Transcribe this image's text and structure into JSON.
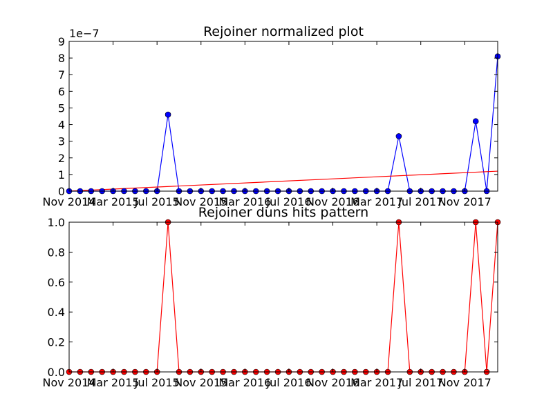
{
  "chart_data": [
    {
      "type": "line",
      "title": "Rejoiner normalized plot",
      "offset_label": "1e−7",
      "x": [
        "2014-11",
        "2014-12",
        "2015-01",
        "2015-02",
        "2015-03",
        "2015-04",
        "2015-05",
        "2015-06",
        "2015-07",
        "2015-08",
        "2015-09",
        "2015-10",
        "2015-11",
        "2015-12",
        "2016-01",
        "2016-02",
        "2016-03",
        "2016-04",
        "2016-05",
        "2016-06",
        "2016-07",
        "2016-08",
        "2016-09",
        "2016-10",
        "2016-11",
        "2016-12",
        "2017-01",
        "2017-02",
        "2017-03",
        "2017-04",
        "2017-05",
        "2017-06",
        "2017-07",
        "2017-08",
        "2017-09",
        "2017-10",
        "2017-11",
        "2017-12",
        "2018-01",
        "2018-02"
      ],
      "series": [
        {
          "color": "#0000ff",
          "values": [
            0,
            0,
            0,
            0,
            0,
            0,
            0,
            0,
            0,
            4.6,
            0,
            0,
            0,
            0,
            0,
            0,
            0,
            0,
            0,
            0,
            0,
            0,
            0,
            0,
            0,
            0,
            0,
            0,
            0,
            0,
            3.3,
            0,
            0,
            0,
            0,
            0,
            0,
            4.2,
            0,
            8.1
          ]
        }
      ],
      "trendline": {
        "color": "#ff0000",
        "x": [
          "2014-11",
          "2018-02"
        ],
        "values": [
          0,
          1.2
        ]
      },
      "xlim": [
        "2014-11",
        "2018-02"
      ],
      "xticks": [
        {
          "value": "2014-11",
          "label": "Nov 2014"
        },
        {
          "value": "2015-03",
          "label": "Mar 2015"
        },
        {
          "value": "2015-07",
          "label": "Jul 2015"
        },
        {
          "value": "2015-11",
          "label": "Nov 2015"
        },
        {
          "value": "2016-03",
          "label": "Mar 2016"
        },
        {
          "value": "2016-07",
          "label": "Jul 2016"
        },
        {
          "value": "2016-11",
          "label": "Nov 2016"
        },
        {
          "value": "2017-03",
          "label": "Mar 2017"
        },
        {
          "value": "2017-07",
          "label": "Jul 2017"
        },
        {
          "value": "2017-11",
          "label": "Nov 2017"
        }
      ],
      "ylim": [
        0,
        9
      ],
      "yticks": [
        0,
        1,
        2,
        3,
        4,
        5,
        6,
        7,
        8,
        9
      ]
    },
    {
      "type": "line",
      "title": "Rejoiner duns hits pattern",
      "x": [
        "2014-11",
        "2014-12",
        "2015-01",
        "2015-02",
        "2015-03",
        "2015-04",
        "2015-05",
        "2015-06",
        "2015-07",
        "2015-08",
        "2015-09",
        "2015-10",
        "2015-11",
        "2015-12",
        "2016-01",
        "2016-02",
        "2016-03",
        "2016-04",
        "2016-05",
        "2016-06",
        "2016-07",
        "2016-08",
        "2016-09",
        "2016-10",
        "2016-11",
        "2016-12",
        "2017-01",
        "2017-02",
        "2017-03",
        "2017-04",
        "2017-05",
        "2017-06",
        "2017-07",
        "2017-08",
        "2017-09",
        "2017-10",
        "2017-11",
        "2017-12",
        "2018-01",
        "2018-02"
      ],
      "series": [
        {
          "color": "#ff0000",
          "values": [
            0,
            0,
            0,
            0,
            0,
            0,
            0,
            0,
            0,
            1,
            0,
            0,
            0,
            0,
            0,
            0,
            0,
            0,
            0,
            0,
            0,
            0,
            0,
            0,
            0,
            0,
            0,
            0,
            0,
            0,
            1,
            0,
            0,
            0,
            0,
            0,
            0,
            1,
            0,
            1
          ]
        }
      ],
      "xlim": [
        "2014-11",
        "2018-02"
      ],
      "xticks": [
        {
          "value": "2014-11",
          "label": "Nov 2014"
        },
        {
          "value": "2015-03",
          "label": "Mar 2015"
        },
        {
          "value": "2015-07",
          "label": "Jul 2015"
        },
        {
          "value": "2015-11",
          "label": "Nov 2015"
        },
        {
          "value": "2016-03",
          "label": "Mar 2016"
        },
        {
          "value": "2016-07",
          "label": "Jul 2016"
        },
        {
          "value": "2016-11",
          "label": "Nov 2016"
        },
        {
          "value": "2017-03",
          "label": "Mar 2017"
        },
        {
          "value": "2017-07",
          "label": "Jul 2017"
        },
        {
          "value": "2017-11",
          "label": "Nov 2017"
        }
      ],
      "ylim": [
        0,
        1
      ],
      "yticks": [
        {
          "value": 0,
          "label": "0.0"
        },
        0.2,
        0.4,
        0.6,
        0.8,
        {
          "value": 1,
          "label": "1.0"
        }
      ]
    }
  ]
}
